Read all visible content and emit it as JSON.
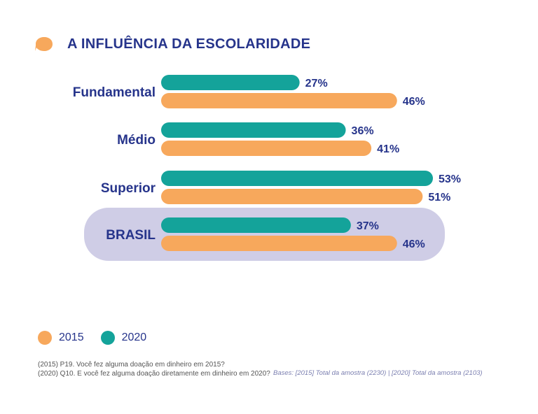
{
  "colors": {
    "series_2015": "#f7a85c",
    "series_2020": "#14a39a",
    "highlight_bg": "#cfcde6",
    "text": "#26348b"
  },
  "chart_data": {
    "type": "bar",
    "orientation": "horizontal",
    "title": "A INFLUÊNCIA DA ESCOLARIDADE",
    "categories": [
      "Fundamental",
      "Médio",
      "Superior",
      "BRASIL"
    ],
    "highlight_category": "BRASIL",
    "series": [
      {
        "name": "2020",
        "values": [
          27,
          36,
          53,
          37
        ],
        "labels": [
          "27%",
          "36%",
          "53%",
          "37%"
        ]
      },
      {
        "name": "2015",
        "values": [
          46,
          41,
          51,
          46
        ],
        "labels": [
          "46%",
          "41%",
          "51%",
          "46%"
        ]
      }
    ],
    "xlim": [
      0,
      53
    ],
    "unit": "%",
    "grid": false,
    "legend": {
      "placement": "bottom-left",
      "entries": [
        "2015",
        "2020"
      ]
    }
  },
  "notes": {
    "line1": "(2015) P19. Você fez alguma doação em dinheiro em 2015?",
    "line2": "(2020) Q10. E você fez alguma doação diretamente em dinheiro em 2020?",
    "bases": "Bases: [2015] Total da amostra (2230) | [2020] Total da amostra (2103)"
  }
}
